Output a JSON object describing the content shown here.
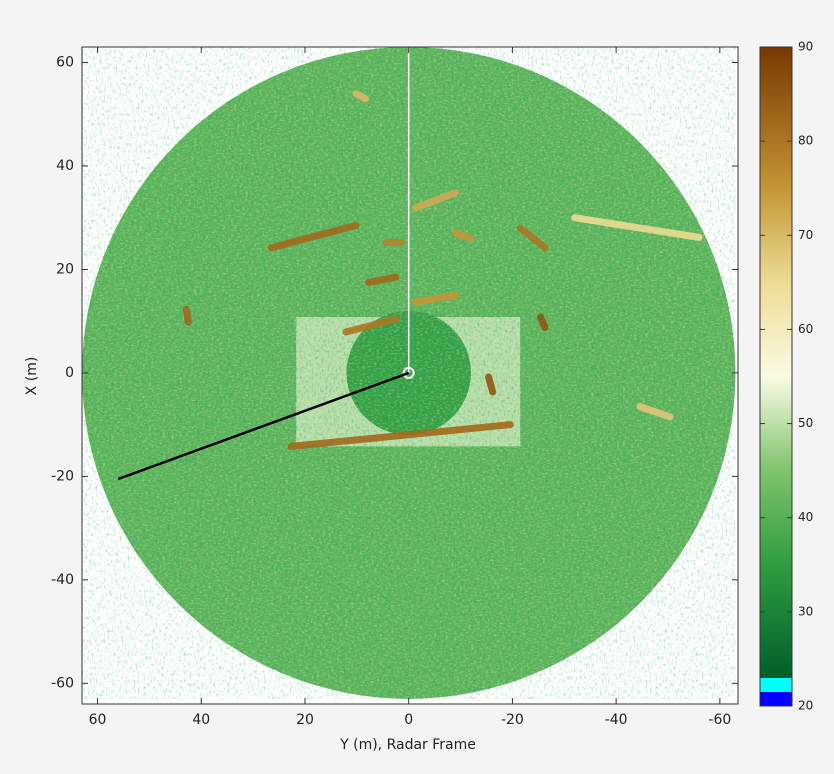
{
  "chart_data": {
    "type": "heatmap",
    "xlabel": "Y (m), Radar Frame",
    "ylabel": "X (m)",
    "xlim": [
      63,
      -63.5
    ],
    "ylim": [
      -64,
      63
    ],
    "xticks": [
      60,
      40,
      20,
      0,
      -20,
      -40,
      -60
    ],
    "yticks": [
      -60,
      -40,
      -20,
      0,
      20,
      40,
      60
    ],
    "colorbar": {
      "lim": [
        20,
        90
      ],
      "ticks": [
        20,
        30,
        40,
        50,
        60,
        70,
        80,
        90
      ],
      "stops": [
        {
          "value": 20,
          "color": "#0000ff"
        },
        {
          "value": 21.5,
          "color": "#0000ff"
        },
        {
          "value": 21.5,
          "color": "#00ffff"
        },
        {
          "value": 23,
          "color": "#00ffff"
        },
        {
          "value": 23,
          "color": "#005f2a"
        },
        {
          "value": 35,
          "color": "#2f9d3f"
        },
        {
          "value": 45,
          "color": "#7ec46c"
        },
        {
          "value": 55,
          "color": "#fbfbe4"
        },
        {
          "value": 65,
          "color": "#ecdc94"
        },
        {
          "value": 75,
          "color": "#c49634"
        },
        {
          "value": 90,
          "color": "#783800"
        }
      ]
    },
    "radar": {
      "radius": 63,
      "background": 41,
      "core_radius": 12,
      "core_value": 36
    },
    "zones": [
      {
        "x": [
          21.7,
          -21.5
        ],
        "y": [
          10.8,
          -14.2
        ],
        "value": 52
      }
    ],
    "streaks": [
      {
        "x": [
          22.7,
          -19.6
        ],
        "y": [
          -14.2,
          -10
        ],
        "value": 82
      },
      {
        "x": [
          26.5,
          10.2
        ],
        "y": [
          24.2,
          28.5
        ],
        "value": 82
      },
      {
        "x": [
          -1.3,
          -9
        ],
        "y": [
          31.9,
          34.8
        ],
        "value": 72
      },
      {
        "x": [
          -21.5,
          -26.3
        ],
        "y": [
          28,
          24.2
        ],
        "value": 80
      },
      {
        "x": [
          -32,
          -56
        ],
        "y": [
          30,
          26.2
        ],
        "value": 65
      },
      {
        "x": [
          42.9,
          42.5
        ],
        "y": [
          12.3,
          9.8
        ],
        "value": 82
      },
      {
        "x": [
          12.1,
          2.5
        ],
        "y": [
          7.9,
          10.4
        ],
        "value": 80
      },
      {
        "x": [
          7.7,
          2.5
        ],
        "y": [
          17.5,
          18.5
        ],
        "value": 82
      },
      {
        "x": [
          -1.3,
          -9
        ],
        "y": [
          13.7,
          15
        ],
        "value": 75
      },
      {
        "x": [
          -25.4,
          -26.3
        ],
        "y": [
          10.8,
          8.8
        ],
        "value": 85
      },
      {
        "x": [
          -15.4,
          -16.2
        ],
        "y": [
          -0.8,
          -3.7
        ],
        "value": 85
      },
      {
        "x": [
          10.2,
          8.3
        ],
        "y": [
          54,
          53
        ],
        "value": 70
      },
      {
        "x": [
          -44.6,
          -50.4
        ],
        "y": [
          -6.5,
          -8.5
        ],
        "value": 68
      },
      {
        "x": [
          -9,
          -12
        ],
        "y": [
          27,
          26
        ],
        "value": 75
      },
      {
        "x": [
          4.4,
          1.5
        ],
        "y": [
          25.2,
          25.2
        ],
        "value": 78
      }
    ],
    "beam": {
      "x": [
        0,
        56
      ],
      "y": [
        0,
        -20.5
      ]
    }
  }
}
